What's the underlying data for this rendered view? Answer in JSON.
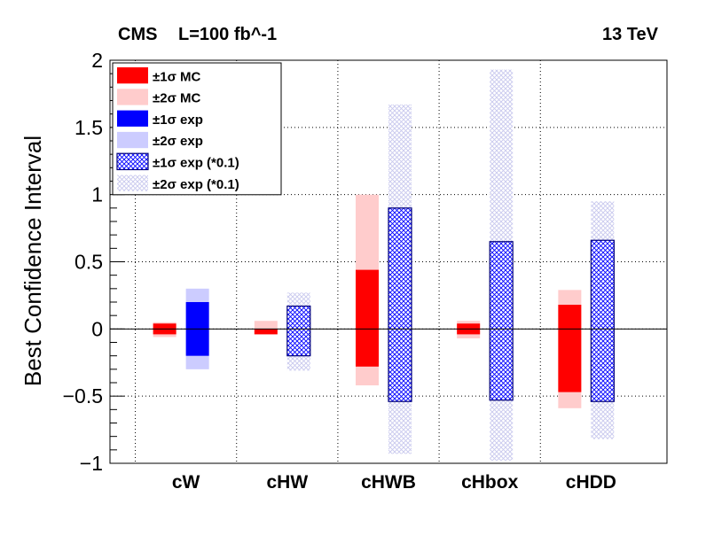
{
  "header": {
    "experiment": "CMS",
    "luminosity": "L=100 fb^-1",
    "energy": "13 TeV"
  },
  "chart_data": {
    "type": "bar",
    "title": "",
    "xlabel": "",
    "ylabel": "Best Confidence Interval",
    "ylim": [
      -1,
      2
    ],
    "yticks": [
      -1,
      -0.5,
      0,
      0.5,
      1,
      1.5,
      2
    ],
    "ytick_labels": [
      "−1",
      "−0.5",
      "0",
      "0.5",
      "1",
      "1.5",
      "2"
    ],
    "grid": true,
    "legend_position": "top-left",
    "categories": [
      "cW",
      "cHW",
      "cHWB",
      "cHbox",
      "cHDD"
    ],
    "series": [
      {
        "name": "±1σ MC",
        "color": "#ff0000",
        "pattern": "solid",
        "slot": "left",
        "intervals": [
          [
            -0.04,
            0.04
          ],
          [
            -0.04,
            0.0
          ],
          [
            -0.28,
            0.44
          ],
          [
            -0.04,
            0.04
          ],
          [
            -0.47,
            0.18
          ]
        ]
      },
      {
        "name": "±2σ MC",
        "color": "#ffcccc",
        "pattern": "solid",
        "slot": "left",
        "intervals": [
          [
            -0.06,
            0.05
          ],
          [
            -0.04,
            0.06
          ],
          [
            -0.42,
            1.0
          ],
          [
            -0.07,
            0.06
          ],
          [
            -0.59,
            0.29
          ]
        ]
      },
      {
        "name": "±1σ exp",
        "color": "#0000ff",
        "pattern": "solid",
        "slot": "right",
        "intervals": [
          [
            -0.2,
            0.2
          ],
          null,
          null,
          null,
          null
        ]
      },
      {
        "name": "±2σ exp",
        "color": "#ccccff",
        "pattern": "solid",
        "slot": "right",
        "intervals": [
          [
            -0.3,
            0.3
          ],
          null,
          null,
          null,
          null
        ]
      },
      {
        "name": "±1σ exp (*0.1)",
        "color": "#0000ff",
        "pattern": "hatch",
        "slot": "right",
        "intervals": [
          null,
          [
            -0.2,
            0.17
          ],
          [
            -0.54,
            0.9
          ],
          [
            -0.53,
            0.65
          ],
          [
            -0.54,
            0.66
          ]
        ]
      },
      {
        "name": "±2σ exp (*0.1)",
        "color": "#ccccff",
        "pattern": "hatch",
        "slot": "right",
        "intervals": [
          null,
          [
            -0.31,
            0.27
          ],
          [
            -0.93,
            1.67
          ],
          [
            -0.98,
            1.93
          ],
          [
            -0.82,
            0.95
          ]
        ]
      }
    ]
  }
}
